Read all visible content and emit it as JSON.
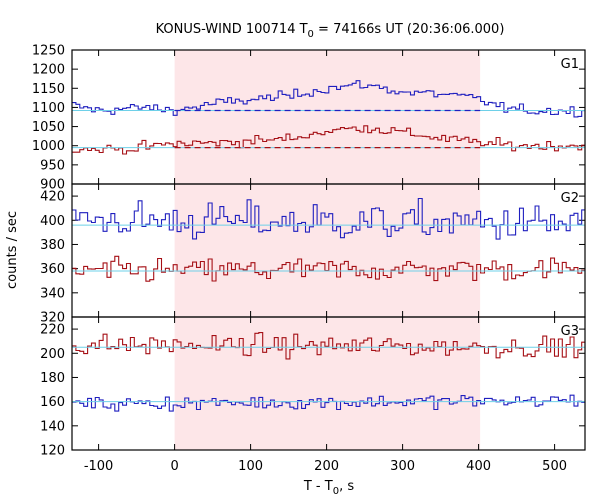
{
  "title_prefix": "KONUS-WIND 100714 T",
  "title_sub": "0",
  "title_suffix": " = 74166s UT (20:36:06.000)",
  "ylabel": "counts / sec",
  "xlabel_prefix": "T - T",
  "xlabel_sub": "0",
  "xlabel_suffix": ", s",
  "colors": {
    "blue": "#1f1fbf",
    "red": "#a50f15",
    "cyan": "#6ed0e8",
    "shade": "#fde6e8"
  },
  "chart_data": {
    "type": "line",
    "x_range": [
      -135,
      540
    ],
    "x_ticks": [
      -100,
      0,
      100,
      200,
      300,
      400,
      500
    ],
    "highlight_interval": [
      0,
      402
    ],
    "bin_width_s": 5.12,
    "panels": [
      {
        "name": "G1",
        "ylim": [
          900,
          1250
        ],
        "yticks": [
          900,
          950,
          1000,
          1050,
          1100,
          1150,
          1200,
          1250
        ],
        "series": [
          {
            "color": "blue",
            "background": 1092,
            "knots": [
              [
                -135,
                1105
              ],
              [
                -100,
                1092
              ],
              [
                -40,
                1100
              ],
              [
                0,
                1092
              ],
              [
                60,
                1112
              ],
              [
                150,
                1130
              ],
              [
                200,
                1150
              ],
              [
                250,
                1160
              ],
              [
                300,
                1140
              ],
              [
                350,
                1135
              ],
              [
                400,
                1122
              ],
              [
                430,
                1100
              ],
              [
                460,
                1092
              ],
              [
                540,
                1090
              ]
            ],
            "noise": 9
          },
          {
            "color": "red",
            "background": 995,
            "knots": [
              [
                -135,
                990
              ],
              [
                -60,
                992
              ],
              [
                0,
                1005
              ],
              [
                60,
                1008
              ],
              [
                150,
                1018
              ],
              [
                200,
                1038
              ],
              [
                250,
                1048
              ],
              [
                300,
                1035
              ],
              [
                350,
                1020
              ],
              [
                400,
                1008
              ],
              [
                450,
                1000
              ],
              [
                540,
                1000
              ]
            ],
            "noise": 9
          }
        ]
      },
      {
        "name": "G2",
        "ylim": [
          320,
          430
        ],
        "yticks": [
          320,
          340,
          360,
          380,
          400,
          420
        ],
        "series": [
          {
            "color": "blue",
            "background": 396,
            "knots": [
              [
                -135,
                400
              ],
              [
                540,
                397
              ]
            ],
            "noise": 11
          },
          {
            "color": "red",
            "background": 358,
            "knots": [
              [
                -135,
                358
              ],
              [
                540,
                360
              ]
            ],
            "noise": 7
          }
        ]
      },
      {
        "name": "G3",
        "ylim": [
          120,
          230
        ],
        "yticks": [
          120,
          140,
          160,
          180,
          200,
          220
        ],
        "series": [
          {
            "color": "red",
            "background": 205,
            "knots": [
              [
                -135,
                207
              ],
              [
                540,
                205
              ]
            ],
            "noise": 6
          },
          {
            "color": "blue",
            "background": 160,
            "knots": [
              [
                -135,
                158
              ],
              [
                540,
                161
              ]
            ],
            "noise": 4
          }
        ]
      }
    ]
  }
}
